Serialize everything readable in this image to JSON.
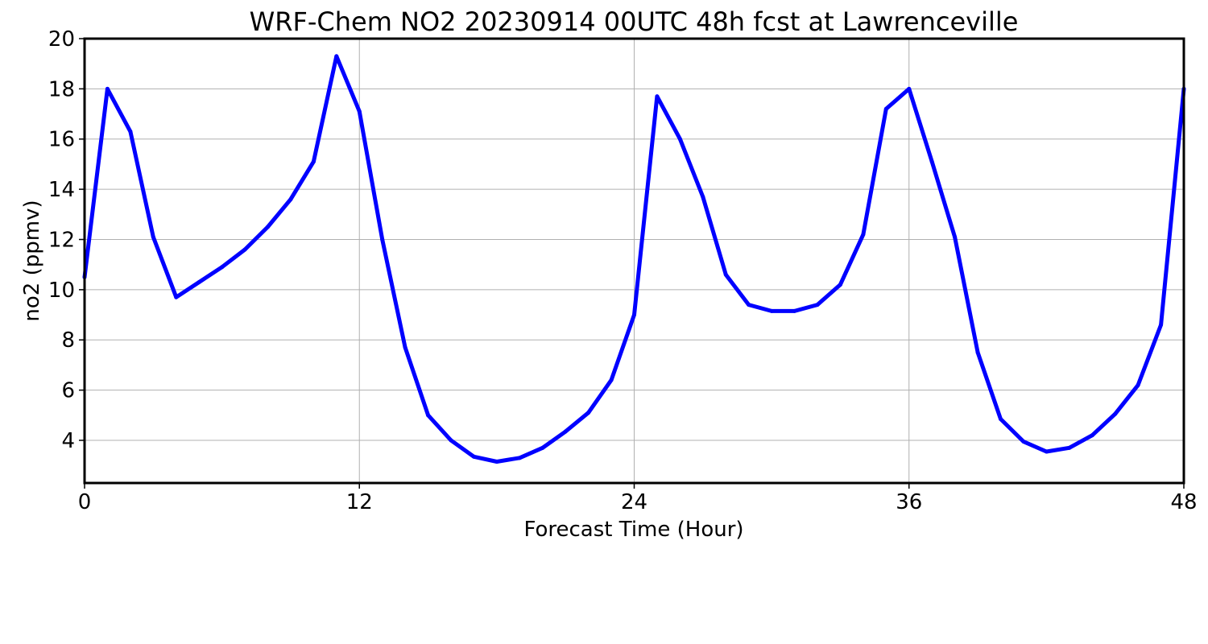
{
  "chart_data": {
    "type": "line",
    "title": "WRF-Chem NO2  20230914 00UTC 48h fcst at Lawrenceville",
    "xlabel": "Forecast Time (Hour)",
    "ylabel": "no2  (ppmv)",
    "xlim": [
      0,
      48
    ],
    "ylim": [
      2.3,
      20
    ],
    "xticks": [
      0,
      12,
      24,
      36,
      48
    ],
    "yticks": [
      4,
      6,
      8,
      10,
      12,
      14,
      16,
      18,
      20
    ],
    "grid": true,
    "series": [
      {
        "color": "#0000ff",
        "x": [
          0,
          1,
          2,
          3,
          4,
          5,
          6,
          7,
          8,
          9,
          10,
          11,
          12,
          13,
          14,
          15,
          16,
          17,
          18,
          19,
          20,
          21,
          22,
          23,
          24,
          25,
          26,
          27,
          28,
          29,
          30,
          31,
          32,
          33,
          34,
          35,
          36,
          37,
          38,
          39,
          40,
          41,
          42,
          43,
          44,
          45,
          46,
          47,
          48
        ],
        "values": [
          10.5,
          18.0,
          16.3,
          12.1,
          9.7,
          10.3,
          10.9,
          11.6,
          12.5,
          13.6,
          15.1,
          19.3,
          17.1,
          12.0,
          7.7,
          5.0,
          4.0,
          3.35,
          3.15,
          3.3,
          3.7,
          4.35,
          5.1,
          6.4,
          9.0,
          17.7,
          16.0,
          13.7,
          10.6,
          9.4,
          9.15,
          9.15,
          9.4,
          10.2,
          12.2,
          17.2,
          18.0,
          15.1,
          12.1,
          7.5,
          4.85,
          3.95,
          3.55,
          3.7,
          4.2,
          5.05,
          6.2,
          8.6,
          18.0
        ]
      }
    ]
  }
}
